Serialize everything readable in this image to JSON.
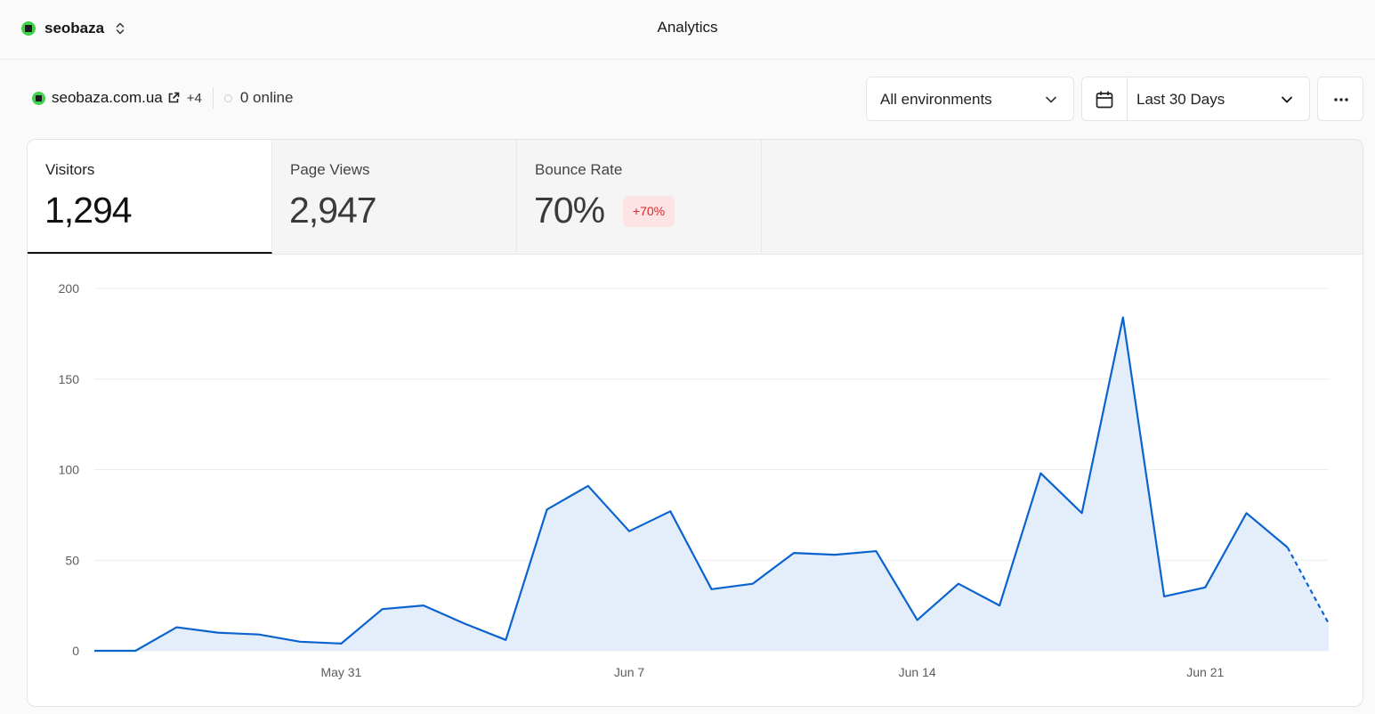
{
  "topbar": {
    "team_name": "seobaza",
    "page_title": "Analytics"
  },
  "project": {
    "domain": "seobaza.com.ua",
    "extra_domains": "+4",
    "online": "0 online"
  },
  "controls": {
    "environment": "All environments",
    "date_range": "Last 30 Days"
  },
  "tabs": [
    {
      "label": "Visitors",
      "value": "1,294"
    },
    {
      "label": "Page Views",
      "value": "2,947"
    },
    {
      "label": "Bounce Rate",
      "value": "70%",
      "badge": "+70%"
    }
  ],
  "colors": {
    "line": "#0b63cf",
    "fill": "#e3eefa",
    "badge_text": "#d92626",
    "badge_bg": "#fde3e3"
  },
  "chart_data": {
    "type": "area",
    "y_ticks": [
      0,
      50,
      100,
      150,
      200
    ],
    "ylim": [
      0,
      200
    ],
    "x_tick_labels": [
      {
        "index": 6,
        "label": "May 31"
      },
      {
        "index": 13,
        "label": "Jun 7"
      },
      {
        "index": 20,
        "label": "Jun 14"
      },
      {
        "index": 27,
        "label": "Jun 21"
      }
    ],
    "series": [
      {
        "values": [
          0,
          0,
          13,
          10,
          9,
          5,
          4,
          23,
          25,
          15,
          6,
          78,
          91,
          66,
          77,
          34,
          37,
          54,
          53,
          55,
          17,
          37,
          25,
          98,
          76,
          184,
          30,
          35,
          76,
          57,
          15
        ],
        "dashed_from_index": 29
      }
    ],
    "grid": true
  }
}
